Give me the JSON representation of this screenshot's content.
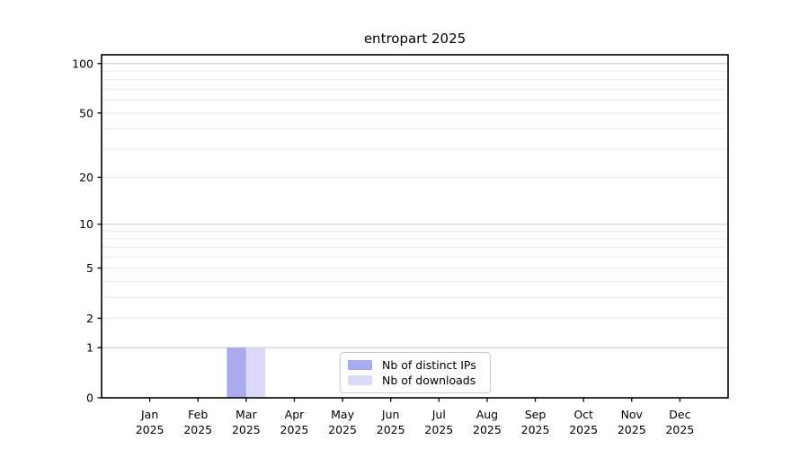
{
  "chart_data": {
    "type": "bar",
    "title": "entropart 2025",
    "categories": [
      "Jan 2025",
      "Feb 2025",
      "Mar 2025",
      "Apr 2025",
      "May 2025",
      "Jun 2025",
      "Jul 2025",
      "Aug 2025",
      "Sep 2025",
      "Oct 2025",
      "Nov 2025",
      "Dec 2025"
    ],
    "x_tick_months": [
      "Jan",
      "Feb",
      "Mar",
      "Apr",
      "May",
      "Jun",
      "Jul",
      "Aug",
      "Sep",
      "Oct",
      "Nov",
      "Dec"
    ],
    "x_tick_year": "2025",
    "series": [
      {
        "name": "Nb of distinct IPs",
        "color": "#aaaaee",
        "values": [
          0,
          0,
          1,
          0,
          0,
          0,
          0,
          0,
          0,
          0,
          0,
          0
        ]
      },
      {
        "name": "Nb of downloads",
        "color": "#dadaf8",
        "values": [
          0,
          0,
          1,
          0,
          0,
          0,
          0,
          0,
          0,
          0,
          0,
          0
        ]
      }
    ],
    "y_scale": "log1p",
    "y_ticks": [
      0,
      1,
      2,
      5,
      10,
      20,
      50,
      100
    ],
    "y_major_gridlines": [
      1,
      10,
      100
    ],
    "y_minor_gridlines": [
      2,
      3,
      4,
      5,
      6,
      7,
      8,
      9,
      20,
      30,
      40,
      50,
      60,
      70,
      80,
      90
    ],
    "ylim": [
      0,
      113
    ],
    "xlabel": "",
    "ylabel": "",
    "grid": "horizontal",
    "legend_position": "lower center",
    "colors": {
      "major_grid": "#d2d2d2",
      "minor_grid": "#ebebeb",
      "spine": "#000000",
      "text": "#000000",
      "background": "#ffffff"
    }
  }
}
